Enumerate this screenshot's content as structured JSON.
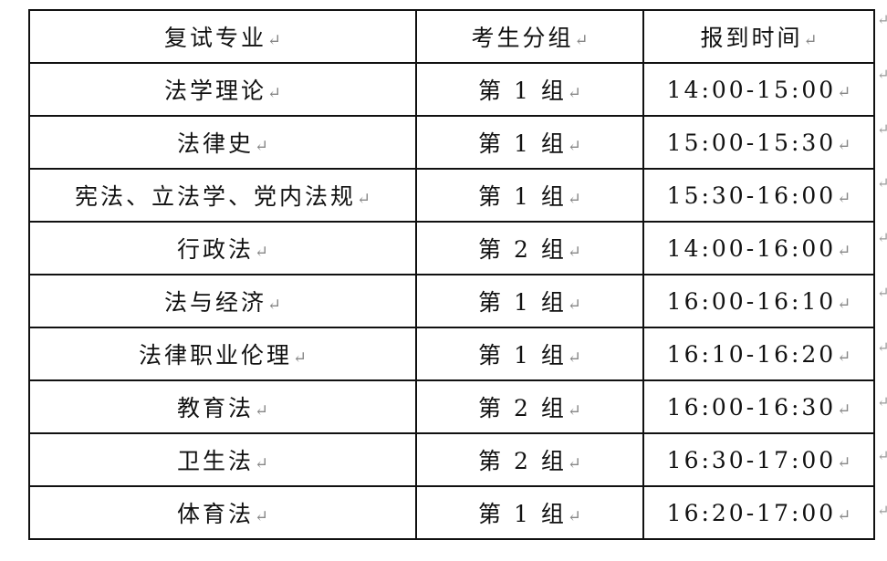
{
  "mark_icon": "paragraph-return-icon",
  "mark": "↵",
  "headers": [
    "复试专业",
    "考生分组",
    "报到时间"
  ],
  "rows": [
    [
      "法学理论",
      "第 1 组",
      "14:00-15:00"
    ],
    [
      "法律史",
      "第 1 组",
      "15:00-15:30"
    ],
    [
      "宪法、立法学、党内法规",
      "第 1 组",
      "15:30-16:00"
    ],
    [
      "行政法",
      "第 2 组",
      "14:00-16:00"
    ],
    [
      "法与经济",
      "第 1 组",
      "16:00-16:10"
    ],
    [
      "法律职业伦理",
      "第 1 组",
      "16:10-16:20"
    ],
    [
      "教育法",
      "第 2 组",
      "16:00-16:30"
    ],
    [
      "卫生法",
      "第 2 组",
      "16:30-17:00"
    ],
    [
      "体育法",
      "第 1 组",
      "16:20-17:00"
    ]
  ]
}
